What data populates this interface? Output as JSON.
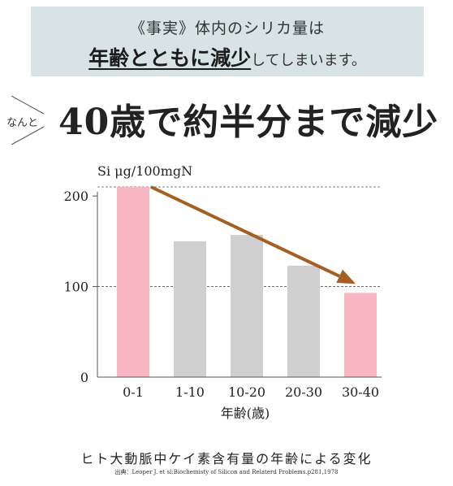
{
  "banner": {
    "line1": "《事実》体内のシリカ量は",
    "line2_emphasis": "年齢とともに減少",
    "line2_rest": "してしまいます。"
  },
  "headline": {
    "prefix": "なんと",
    "text": "40歳で約半分まで減少"
  },
  "chart_data": {
    "type": "bar",
    "ylabel": "Si μg/100mgN",
    "xlabel": "年齢(歳)",
    "categories": [
      "0-1",
      "1-10",
      "10-20",
      "20-30",
      "30-40"
    ],
    "values": [
      210,
      150,
      157,
      123,
      93
    ],
    "ylim": [
      0,
      210
    ],
    "yticks": [
      0,
      100,
      200
    ],
    "reference_lines": [
      210,
      100
    ],
    "highlight_color": "#f7b6c1",
    "bar_color": "#cfcfcf",
    "arrow_color": "#a65f22",
    "arrow": {
      "from_category": "0-1",
      "to_category": "30-40",
      "from_value": 210,
      "to_value": 103
    },
    "grid": false,
    "legend": "none"
  },
  "caption": "ヒト大動脈中ケイ素含有量の年齢による変化",
  "source": "出典：Leoper J. et sl:Biochemisty of Silicon and Relaterd Problems.p281,1978"
}
